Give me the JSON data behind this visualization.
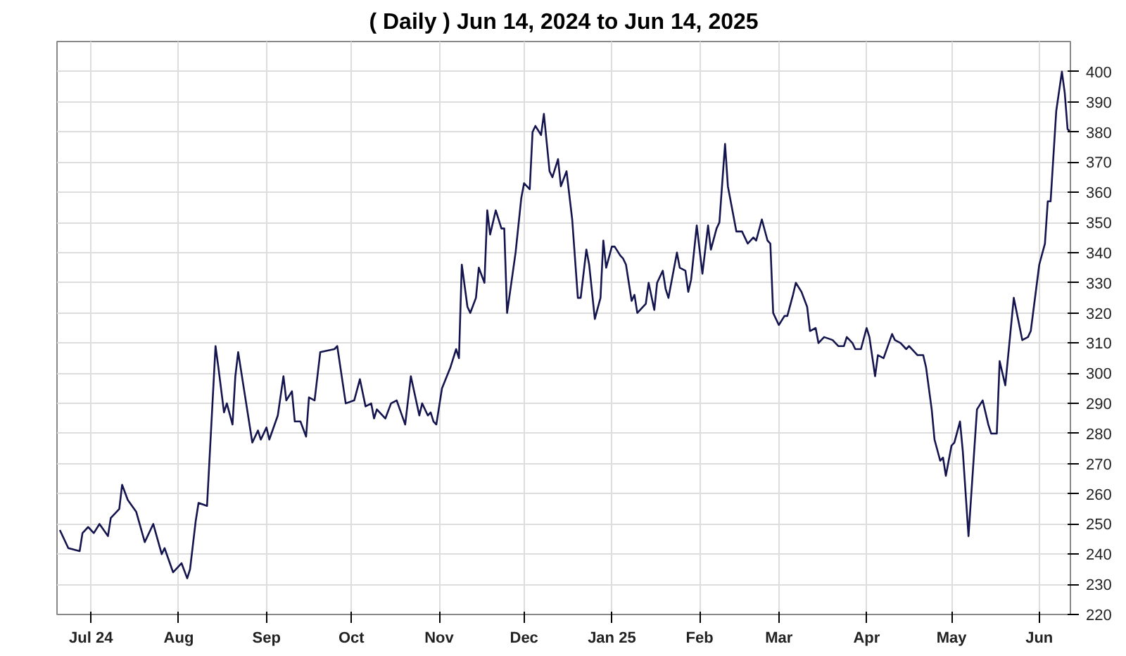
{
  "chart_data": {
    "type": "line",
    "title": "( Daily ) Jun 14, 2024 to Jun 14, 2025",
    "x": [
      "2024-06-20",
      "2024-06-23",
      "2024-06-27",
      "2024-06-28",
      "2024-06-30",
      "2024-07-02",
      "2024-07-04",
      "2024-07-07",
      "2024-07-08",
      "2024-07-11",
      "2024-07-12",
      "2024-07-14",
      "2024-07-17",
      "2024-07-20",
      "2024-07-23",
      "2024-07-26",
      "2024-07-27",
      "2024-07-30",
      "2024-08-02",
      "2024-08-04",
      "2024-08-05",
      "2024-08-07",
      "2024-08-08",
      "2024-08-11",
      "2024-08-14",
      "2024-08-15",
      "2024-08-17",
      "2024-08-18",
      "2024-08-20",
      "2024-08-21",
      "2024-08-22",
      "2024-08-27",
      "2024-08-29",
      "2024-08-30",
      "2024-09-01",
      "2024-09-02",
      "2024-09-05",
      "2024-09-07",
      "2024-09-08",
      "2024-09-10",
      "2024-09-11",
      "2024-09-13",
      "2024-09-15",
      "2024-09-16",
      "2024-09-18",
      "2024-09-20",
      "2024-09-25",
      "2024-09-26",
      "2024-09-29",
      "2024-10-02",
      "2024-10-04",
      "2024-10-06",
      "2024-10-08",
      "2024-10-09",
      "2024-10-10",
      "2024-10-13",
      "2024-10-15",
      "2024-10-17",
      "2024-10-20",
      "2024-10-22",
      "2024-10-25",
      "2024-10-26",
      "2024-10-28",
      "2024-10-29",
      "2024-10-30",
      "2024-10-31",
      "2024-11-02",
      "2024-11-05",
      "2024-11-07",
      "2024-11-08",
      "2024-11-09",
      "2024-11-11",
      "2024-11-12",
      "2024-11-14",
      "2024-11-15",
      "2024-11-17",
      "2024-11-18",
      "2024-11-19",
      "2024-11-21",
      "2024-11-23",
      "2024-11-24",
      "2024-11-25",
      "2024-11-28",
      "2024-11-30",
      "2024-12-01",
      "2024-12-03",
      "2024-12-04",
      "2024-12-05",
      "2024-12-07",
      "2024-12-08",
      "2024-12-10",
      "2024-12-11",
      "2024-12-13",
      "2024-12-14",
      "2024-12-16",
      "2024-12-18",
      "2024-12-20",
      "2024-12-21",
      "2024-12-23",
      "2024-12-24",
      "2024-12-26",
      "2024-12-28",
      "2024-12-29",
      "2024-12-30",
      "2025-01-01",
      "2025-01-02",
      "2025-01-04",
      "2025-01-05",
      "2025-01-06",
      "2025-01-08",
      "2025-01-09",
      "2025-01-10",
      "2025-01-13",
      "2025-01-14",
      "2025-01-16",
      "2025-01-17",
      "2025-01-19",
      "2025-01-20",
      "2025-01-21",
      "2025-01-22",
      "2025-01-24",
      "2025-01-25",
      "2025-01-27",
      "2025-01-28",
      "2025-01-29",
      "2025-01-31",
      "2025-02-01",
      "2025-02-02",
      "2025-02-04",
      "2025-02-05",
      "2025-02-07",
      "2025-02-08",
      "2025-02-10",
      "2025-02-11",
      "2025-02-13",
      "2025-02-14",
      "2025-02-16",
      "2025-02-18",
      "2025-02-20",
      "2025-02-21",
      "2025-02-23",
      "2025-02-25",
      "2025-02-26",
      "2025-02-27",
      "2025-03-01",
      "2025-03-03",
      "2025-03-04",
      "2025-03-06",
      "2025-03-07",
      "2025-03-09",
      "2025-03-11",
      "2025-03-12",
      "2025-03-14",
      "2025-03-15",
      "2025-03-17",
      "2025-03-20",
      "2025-03-22",
      "2025-03-24",
      "2025-03-25",
      "2025-03-27",
      "2025-03-28",
      "2025-03-30",
      "2025-04-01",
      "2025-04-02",
      "2025-04-04",
      "2025-04-05",
      "2025-04-07",
      "2025-04-10",
      "2025-04-11",
      "2025-04-13",
      "2025-04-15",
      "2025-04-16",
      "2025-04-18",
      "2025-04-19",
      "2025-04-21",
      "2025-04-22",
      "2025-04-24",
      "2025-04-25",
      "2025-04-27",
      "2025-04-28",
      "2025-04-29",
      "2025-05-01",
      "2025-05-02",
      "2025-05-04",
      "2025-05-05",
      "2025-05-07",
      "2025-05-10",
      "2025-05-12",
      "2025-05-14",
      "2025-05-15",
      "2025-05-17",
      "2025-05-18",
      "2025-05-20",
      "2025-05-23",
      "2025-05-26",
      "2025-05-28",
      "2025-05-29",
      "2025-06-01",
      "2025-06-03",
      "2025-06-04",
      "2025-06-05",
      "2025-06-07",
      "2025-06-09",
      "2025-06-10",
      "2025-06-11",
      "2025-06-12"
    ],
    "series": [
      {
        "color": "#14144f",
        "values": [
          248,
          242,
          241,
          247,
          249,
          247,
          250,
          246,
          252,
          255,
          263,
          258,
          254,
          244,
          250,
          240,
          242,
          234,
          237,
          232,
          235,
          251,
          257,
          256,
          309,
          302,
          287,
          290,
          283,
          299,
          307,
          277,
          281,
          278,
          282,
          278,
          286,
          299,
          291,
          294,
          284,
          284,
          279,
          292,
          291,
          307,
          308,
          309,
          290,
          291,
          298,
          289,
          290,
          285,
          288,
          285,
          290,
          291,
          283,
          299,
          286,
          290,
          286,
          287,
          284,
          283,
          295,
          302,
          308,
          305,
          336,
          322,
          320,
          325,
          335,
          330,
          354,
          346,
          354,
          348,
          348,
          320,
          340,
          358,
          363,
          361,
          380,
          382,
          379,
          386,
          367,
          365,
          371,
          362,
          367,
          351,
          325,
          325,
          341,
          336,
          318,
          325,
          344,
          335,
          342,
          342,
          339,
          338,
          336,
          324,
          326,
          320,
          323,
          330,
          321,
          330,
          334,
          328,
          325,
          330,
          340,
          335,
          334,
          327,
          331,
          349,
          341,
          333,
          349,
          341,
          348,
          350,
          376,
          362,
          352,
          347,
          347,
          343,
          345,
          344,
          351,
          344,
          343,
          320,
          316,
          319,
          319,
          326,
          330,
          327,
          322,
          314,
          315,
          310,
          312,
          311,
          309,
          309,
          312,
          310,
          308,
          308,
          315,
          312,
          299,
          306,
          305,
          313,
          311,
          310,
          308,
          309,
          307,
          306,
          306,
          302,
          288,
          278,
          271,
          272,
          266,
          276,
          277,
          284,
          274,
          246,
          288,
          291,
          283,
          280,
          280,
          304,
          296,
          325,
          311,
          312,
          314,
          336,
          343,
          357,
          357,
          387,
          400,
          393,
          381,
          380
        ]
      }
    ],
    "xlim": [
      "2024-06-19",
      "2025-06-12"
    ],
    "xticks": [
      {
        "value": "2024-07-01",
        "label": "Jul 24"
      },
      {
        "value": "2024-08-01",
        "label": "Aug"
      },
      {
        "value": "2024-09-01",
        "label": "Sep"
      },
      {
        "value": "2024-10-01",
        "label": "Oct"
      },
      {
        "value": "2024-11-01",
        "label": "Nov"
      },
      {
        "value": "2024-12-01",
        "label": "Dec"
      },
      {
        "value": "2025-01-01",
        "label": "Jan 25"
      },
      {
        "value": "2025-02-01",
        "label": "Feb"
      },
      {
        "value": "2025-03-01",
        "label": "Mar"
      },
      {
        "value": "2025-04-01",
        "label": "Apr"
      },
      {
        "value": "2025-05-01",
        "label": "May"
      },
      {
        "value": "2025-06-01",
        "label": "Jun"
      }
    ],
    "ylim": [
      220,
      410
    ],
    "yticks": [
      220,
      230,
      240,
      250,
      260,
      270,
      280,
      290,
      300,
      310,
      320,
      330,
      340,
      350,
      360,
      370,
      380,
      390,
      400
    ],
    "grid": true,
    "marker": "none",
    "line_style": "solid"
  }
}
